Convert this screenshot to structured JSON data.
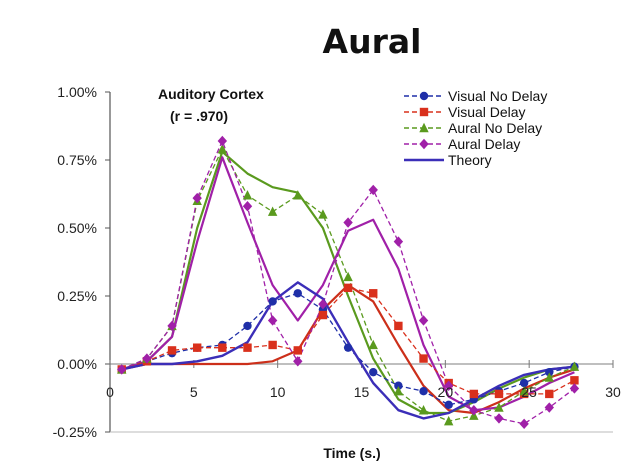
{
  "page_title": "Aural",
  "chart_data": {
    "type": "line",
    "title": "Aural",
    "annotation": {
      "line1": "Auditory Cortex",
      "line2": "(r = .970)"
    },
    "xlabel": "Time (s.)",
    "ylabel": "",
    "xlim": [
      0,
      30
    ],
    "ylim": [
      -0.25,
      1.0
    ],
    "x_ticks": [
      0,
      5,
      10,
      15,
      20,
      25,
      30
    ],
    "x_tick_labels": [
      "0",
      "5",
      "10",
      "15",
      "20",
      "25",
      "30"
    ],
    "y_ticks": [
      -0.25,
      0,
      0.25,
      0.5,
      0.75,
      1.0
    ],
    "y_tick_labels": [
      "-0.25%",
      "0.00%",
      "0.25%",
      "0.50%",
      "0.75%",
      "1.00%"
    ],
    "legend_position": "top-right",
    "series": [
      {
        "name": "Visual No Delay",
        "color": "#1f2fa8",
        "marker": "circle",
        "dashed": true,
        "x": [
          0.7,
          2.2,
          3.7,
          5.2,
          6.7,
          8.2,
          9.7,
          11.2,
          12.7,
          14.2,
          15.7,
          17.2,
          18.7,
          20.2,
          21.7,
          23.2,
          24.7,
          26.2,
          27.7
        ],
        "y": [
          -0.02,
          0.01,
          0.04,
          0.06,
          0.07,
          0.14,
          0.23,
          0.26,
          0.2,
          0.06,
          -0.03,
          -0.08,
          -0.1,
          -0.15,
          -0.13,
          -0.1,
          -0.07,
          -0.03,
          -0.01
        ]
      },
      {
        "name": "Visual Delay",
        "color": "#d9301c",
        "marker": "square",
        "dashed": true,
        "x": [
          0.7,
          2.2,
          3.7,
          5.2,
          6.7,
          8.2,
          9.7,
          11.2,
          12.7,
          14.2,
          15.7,
          17.2,
          18.7,
          20.2,
          21.7,
          23.2,
          24.7,
          26.2,
          27.7
        ],
        "y": [
          -0.02,
          0.01,
          0.05,
          0.06,
          0.06,
          0.06,
          0.07,
          0.05,
          0.18,
          0.28,
          0.26,
          0.14,
          0.02,
          -0.07,
          -0.11,
          -0.11,
          -0.11,
          -0.11,
          -0.06
        ]
      },
      {
        "name": "Aural No Delay",
        "color": "#5a9a1e",
        "marker": "triangle",
        "dashed": true,
        "x": [
          0.7,
          2.2,
          3.7,
          5.2,
          6.7,
          8.2,
          9.7,
          11.2,
          12.7,
          14.2,
          15.7,
          17.2,
          18.7,
          20.2,
          21.7,
          23.2,
          24.7,
          26.2,
          27.7
        ],
        "y": [
          -0.02,
          0.02,
          0.14,
          0.6,
          0.79,
          0.62,
          0.56,
          0.62,
          0.55,
          0.32,
          0.07,
          -0.1,
          -0.17,
          -0.21,
          -0.19,
          -0.16,
          -0.1,
          -0.05,
          -0.01
        ]
      },
      {
        "name": "Aural Delay",
        "color": "#a020a8",
        "marker": "diamond",
        "dashed": true,
        "x": [
          0.7,
          2.2,
          3.7,
          5.2,
          6.7,
          8.2,
          9.7,
          11.2,
          12.7,
          14.2,
          15.7,
          17.2,
          18.7,
          20.2,
          21.7,
          23.2,
          24.7,
          26.2,
          27.7
        ],
        "y": [
          -0.02,
          0.02,
          0.14,
          0.61,
          0.82,
          0.58,
          0.16,
          0.01,
          0.22,
          0.52,
          0.64,
          0.45,
          0.16,
          -0.08,
          -0.17,
          -0.2,
          -0.22,
          -0.16,
          -0.09
        ]
      },
      {
        "name": "Theory",
        "color": "#3b2eb8",
        "marker": "none",
        "dashed": false,
        "width": 2.4,
        "x": [
          0.7,
          2.2,
          3.7,
          5.2,
          6.7,
          8.2,
          9.7,
          11.2,
          12.7,
          14.2,
          15.7,
          17.2,
          18.7,
          20.2,
          21.7,
          23.2,
          24.7,
          26.2,
          27.7
        ],
        "y": [
          -0.02,
          0.0,
          0.0,
          0.01,
          0.03,
          0.08,
          0.23,
          0.3,
          0.24,
          0.08,
          -0.07,
          -0.17,
          -0.2,
          -0.18,
          -0.13,
          -0.08,
          -0.04,
          -0.02,
          -0.01
        ]
      }
    ],
    "extra_lines": [
      {
        "color": "#cc2f1a",
        "width": 2.2,
        "x": [
          0.7,
          2.2,
          3.7,
          5.2,
          6.7,
          8.2,
          9.7,
          11.2,
          12.7,
          14.2,
          15.7,
          17.2,
          18.7,
          20.2,
          21.7,
          23.2,
          24.7,
          26.2,
          27.7
        ],
        "y": [
          -0.02,
          0.0,
          0.0,
          0.0,
          0.0,
          0.0,
          0.01,
          0.05,
          0.2,
          0.29,
          0.23,
          0.07,
          -0.08,
          -0.17,
          -0.18,
          -0.14,
          -0.09,
          -0.05,
          -0.02
        ]
      },
      {
        "color": "#5a9a1e",
        "width": 2.2,
        "x": [
          0.7,
          2.2,
          3.7,
          5.2,
          6.7,
          8.2,
          9.7,
          11.2,
          12.7,
          14.2,
          15.7,
          17.2,
          18.7,
          20.2,
          21.7,
          23.2,
          24.7,
          26.2,
          27.7
        ],
        "y": [
          -0.02,
          0.01,
          0.1,
          0.5,
          0.78,
          0.7,
          0.65,
          0.63,
          0.5,
          0.25,
          0.02,
          -0.13,
          -0.18,
          -0.18,
          -0.14,
          -0.09,
          -0.05,
          -0.02,
          -0.01
        ]
      },
      {
        "color": "#a020a8",
        "width": 2.2,
        "x": [
          0.7,
          2.2,
          3.7,
          5.2,
          6.7,
          8.2,
          9.7,
          11.2,
          12.7,
          14.2,
          15.7,
          17.2,
          18.7,
          20.2,
          21.7,
          23.2,
          24.7,
          26.2,
          27.7
        ],
        "y": [
          -0.02,
          0.01,
          0.1,
          0.45,
          0.76,
          0.52,
          0.29,
          0.16,
          0.29,
          0.49,
          0.53,
          0.35,
          0.07,
          -0.12,
          -0.17,
          -0.16,
          -0.12,
          -0.07,
          -0.03
        ]
      }
    ]
  }
}
